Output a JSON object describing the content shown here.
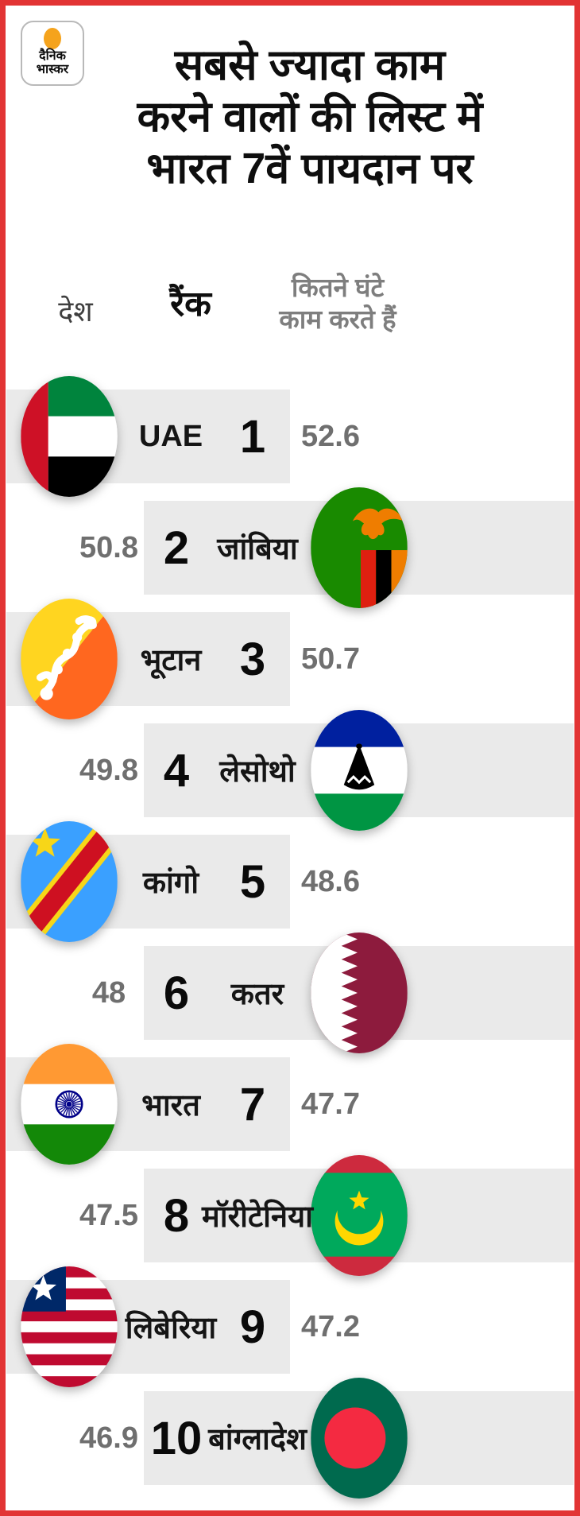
{
  "logo": {
    "line1": "दैनिक",
    "line2": "भास्कर"
  },
  "title": {
    "line1": "सबसे ज्यादा काम",
    "line2": "करने वालों की लिस्ट में",
    "line3": "भारत 7वें पायदान पर"
  },
  "table": {
    "headers": {
      "country": "देश",
      "rank": "रैंक",
      "hours_line1": "कितने घंटे",
      "hours_line2": "काम करते हैं"
    },
    "rows": [
      {
        "country": "UAE",
        "rank": "1",
        "hours": "52.6",
        "flag": "uae",
        "flag_side": "left"
      },
      {
        "country": "जांबिया",
        "rank": "2",
        "hours": "50.8",
        "flag": "zambia",
        "flag_side": "right"
      },
      {
        "country": "भूटान",
        "rank": "3",
        "hours": "50.7",
        "flag": "bhutan",
        "flag_side": "left"
      },
      {
        "country": "लेसोथो",
        "rank": "4",
        "hours": "49.8",
        "flag": "lesotho",
        "flag_side": "right"
      },
      {
        "country": "कांगो",
        "rank": "5",
        "hours": "48.6",
        "flag": "congo",
        "flag_side": "left"
      },
      {
        "country": "कतर",
        "rank": "6",
        "hours": "48",
        "flag": "qatar",
        "flag_side": "right"
      },
      {
        "country": "भारत",
        "rank": "7",
        "hours": "47.7",
        "flag": "india",
        "flag_side": "left"
      },
      {
        "country": "मॉरीटेनिया",
        "rank": "8",
        "hours": "47.5",
        "flag": "mauritania",
        "flag_side": "right"
      },
      {
        "country": "लिबेरिया",
        "rank": "9",
        "hours": "47.2",
        "flag": "liberia",
        "flag_side": "left"
      },
      {
        "country": "बांग्लादेश",
        "rank": "10",
        "hours": "46.9",
        "flag": "bangladesh",
        "flag_side": "right"
      }
    ]
  },
  "colors": {
    "frame_red": "#e23434",
    "band_gray": "#eaeaea",
    "value_gray": "#6f6f6f",
    "logo_orange": "#f5a31c"
  },
  "chart_data": {
    "type": "table",
    "title": "सबसे ज्यादा काम करने वालों की लिस्ट में भारत 7वें पायदान पर",
    "columns": [
      "देश",
      "रैंक",
      "कितने घंटे काम करते हैं"
    ],
    "rows": [
      [
        "UAE",
        1,
        52.6
      ],
      [
        "जांबिया",
        2,
        50.8
      ],
      [
        "भूटान",
        3,
        50.7
      ],
      [
        "लेसोथो",
        4,
        49.8
      ],
      [
        "कांगो",
        5,
        48.6
      ],
      [
        "कतर",
        6,
        48
      ],
      [
        "भारत",
        7,
        47.7
      ],
      [
        "मॉरीटेनिया",
        8,
        47.5
      ],
      [
        "लिबेरिया",
        9,
        47.2
      ],
      [
        "बांग्लादेश",
        10,
        46.9
      ]
    ]
  }
}
